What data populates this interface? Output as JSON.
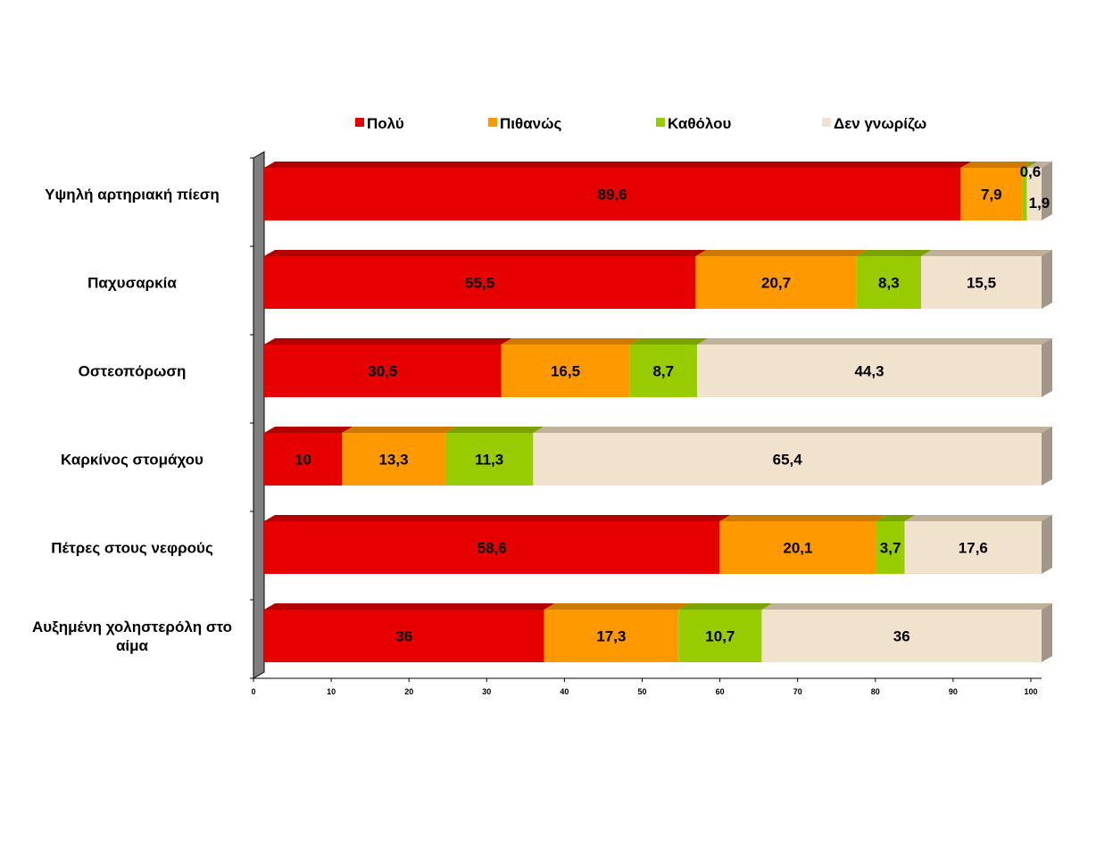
{
  "chart_data": {
    "type": "bar",
    "orientation": "horizontal",
    "stacked": true,
    "style": "3d",
    "categories": [
      "Υψηλή αρτηριακή πίεση",
      "Παχυσαρκία",
      "Οστεοπόρωση",
      "Καρκίνος στομάχου",
      "Πέτρες στους νεφρούς",
      "Αυξημένη χοληστερόλη στο αίμα"
    ],
    "series": [
      {
        "name": "Πολύ",
        "color": "#e60000",
        "top_color": "#b30000",
        "values": [
          89.6,
          55.5,
          30.5,
          10,
          58.6,
          36
        ],
        "labels": [
          "89,6",
          "55,5",
          "30,5",
          "10",
          "58,6",
          "36"
        ]
      },
      {
        "name": "Πιθανώς",
        "color": "#ff9900",
        "top_color": "#cc7a00",
        "values": [
          7.9,
          20.7,
          16.5,
          13.3,
          20.1,
          17.3
        ],
        "labels": [
          "7,9",
          "20,7",
          "16,5",
          "13,3",
          "20,1",
          "17,3"
        ]
      },
      {
        "name": "Καθόλου",
        "color": "#99cc00",
        "top_color": "#7aa300",
        "values": [
          0.6,
          8.3,
          8.7,
          11.3,
          3.7,
          10.7
        ],
        "labels": [
          "0,6",
          "8,3",
          "8,7",
          "11,3",
          "3,7",
          "10,7"
        ]
      },
      {
        "name": "Δεν γνωρίζω",
        "color": "#f0e2cc",
        "top_color": "#bfb09a",
        "values": [
          1.9,
          15.5,
          44.3,
          65.4,
          17.6,
          36
        ],
        "labels": [
          "1,9",
          "15,5",
          "44,3",
          "65,4",
          "17,6",
          "36"
        ]
      }
    ],
    "xlim": [
      0,
      100
    ],
    "x_ticks": [
      "0",
      "10",
      "20",
      "30",
      "40",
      "50",
      "60",
      "70",
      "80",
      "90",
      "100"
    ],
    "xlabel": "",
    "ylabel": "",
    "title": "",
    "legend_position": "top",
    "grid": false
  }
}
